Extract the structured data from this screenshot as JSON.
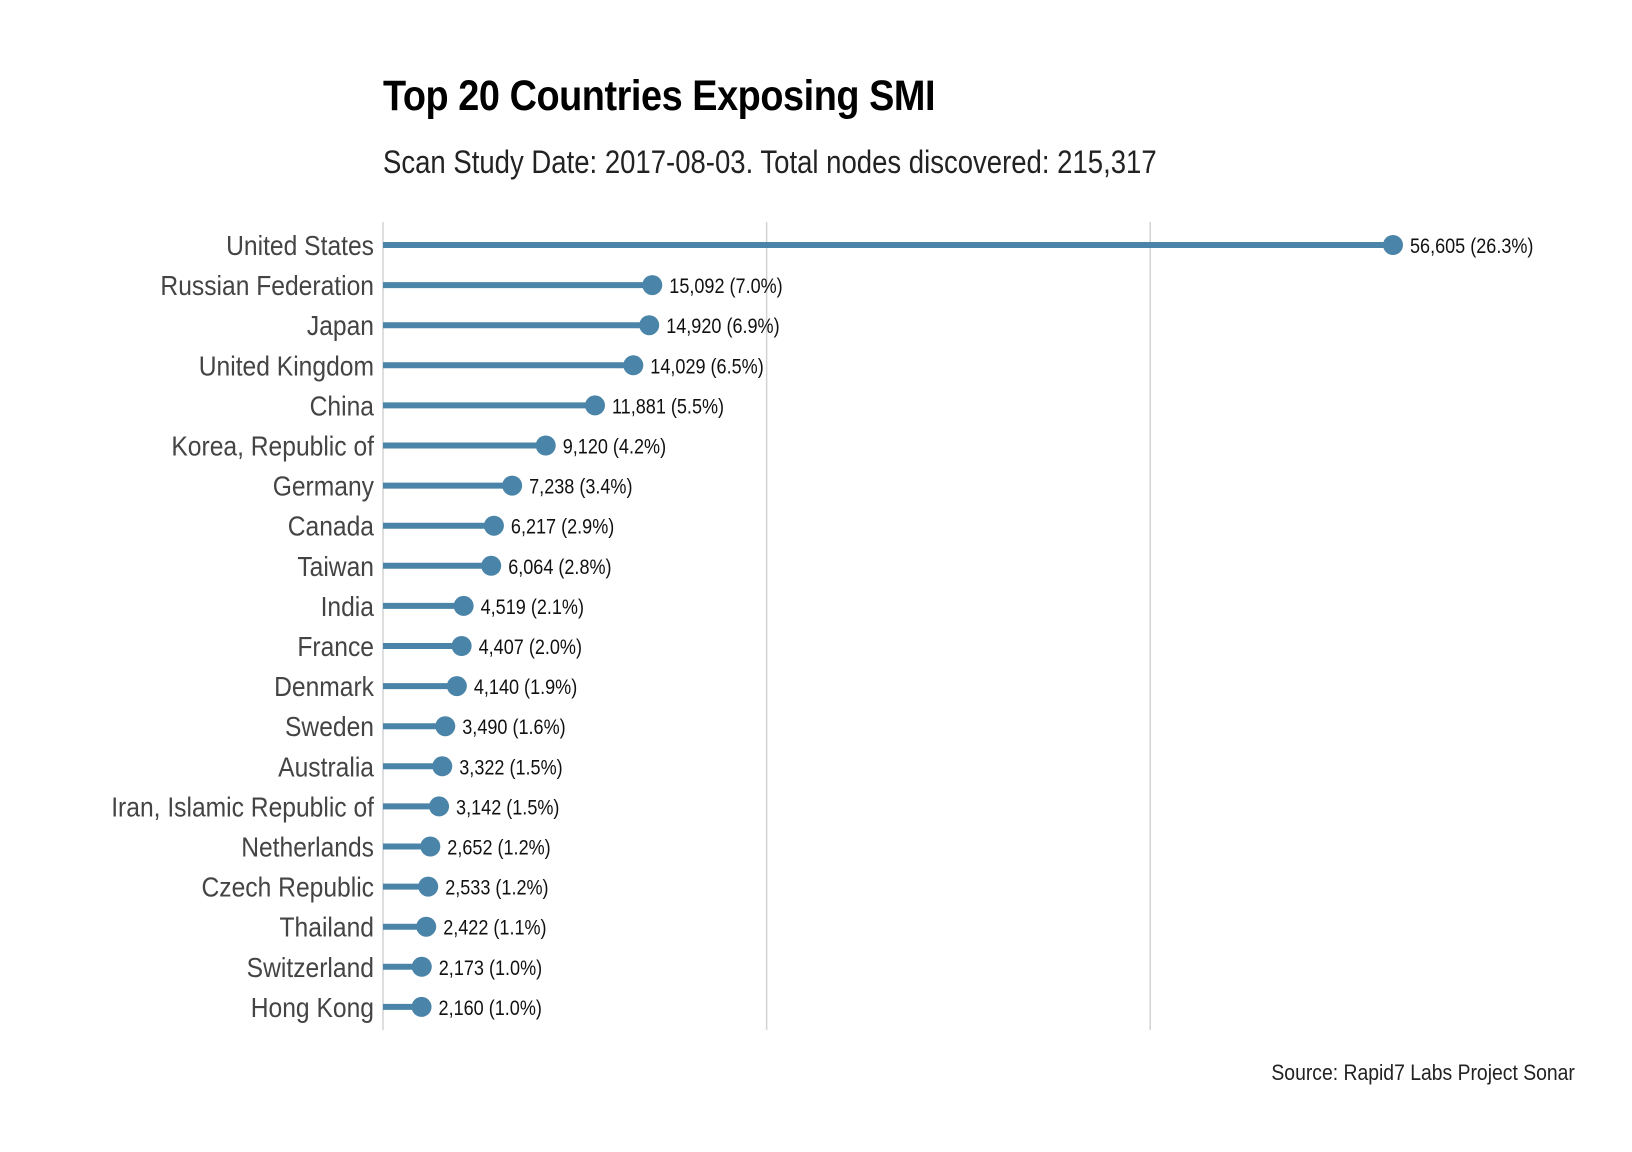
{
  "chart_data": {
    "type": "lollipop",
    "title": "Top 20 Countries Exposing SMI",
    "subtitle": "Scan Study Date: 2017-08-03. Total nodes discovered: 215,317",
    "caption": "Source: Rapid7 Labs Project Sonar",
    "xlabel": "",
    "ylabel": "",
    "xlim": [
      0,
      60000
    ],
    "grid_values": [
      0,
      21500,
      43000
    ],
    "grid": true,
    "color": "#4A84A8",
    "grid_color": "#D3D3D3",
    "categories": [
      "United States",
      "Russian Federation",
      "Japan",
      "United Kingdom",
      "China",
      "Korea, Republic of",
      "Germany",
      "Canada",
      "Taiwan",
      "India",
      "France",
      "Denmark",
      "Sweden",
      "Australia",
      "Iran, Islamic Republic of",
      "Netherlands",
      "Czech Republic",
      "Thailand",
      "Switzerland",
      "Hong Kong"
    ],
    "values": [
      56605,
      15092,
      14920,
      14029,
      11881,
      9120,
      7238,
      6217,
      6064,
      4519,
      4407,
      4140,
      3490,
      3322,
      3142,
      2652,
      2533,
      2422,
      2173,
      2160
    ],
    "labels": [
      "56,605 (26.3%)",
      "15,092 (7.0%)",
      "14,920 (6.9%)",
      "14,029 (6.5%)",
      "11,881 (5.5%)",
      "9,120 (4.2%)",
      "7,238 (3.4%)",
      "6,217 (2.9%)",
      "6,064 (2.8%)",
      "4,519 (2.1%)",
      "4,407 (2.0%)",
      "4,140 (1.9%)",
      "3,490 (1.6%)",
      "3,322 (1.5%)",
      "3,142 (1.5%)",
      "2,652 (1.2%)",
      "2,533 (1.2%)",
      "2,422 (1.1%)",
      "2,173 (1.0%)",
      "2,160 (1.0%)"
    ]
  }
}
